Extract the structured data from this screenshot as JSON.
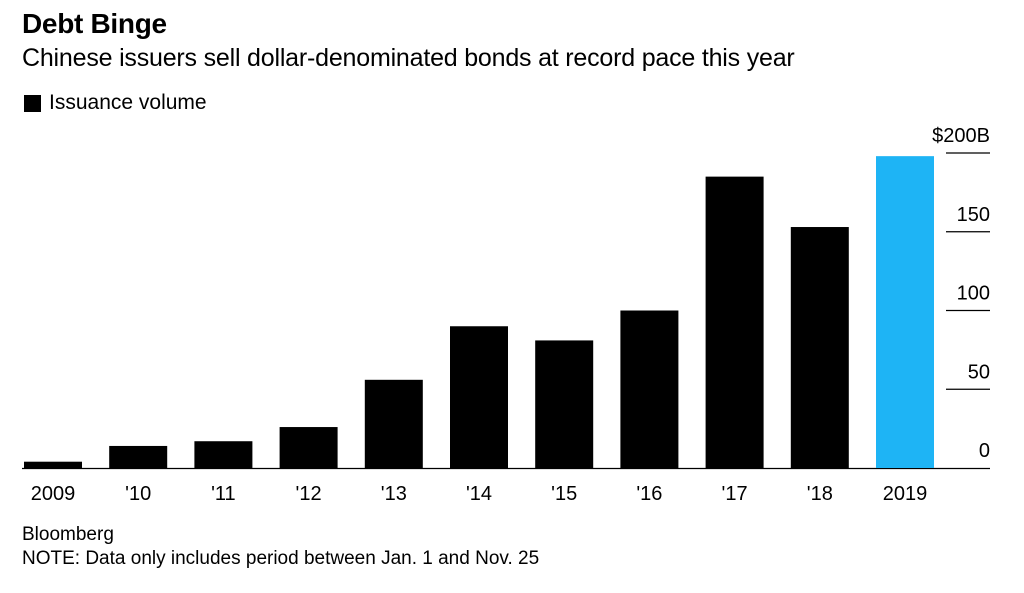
{
  "header": {
    "title": "Debt Binge",
    "subtitle": "Chinese issuers sell dollar-denominated bonds at record pace this year"
  },
  "legend": {
    "label": "Issuance volume",
    "color": "#000000"
  },
  "footer": {
    "source": "Bloomberg",
    "note": "NOTE: Data only includes period between Jan. 1 and Nov. 25"
  },
  "colors": {
    "bar": "#000000",
    "highlight": "#1eb4f5"
  },
  "chart_data": {
    "type": "bar",
    "title": "Debt Binge",
    "subtitle": "Chinese issuers sell dollar-denominated bonds at record pace this year",
    "categories": [
      "2009",
      "'10",
      "'11",
      "'12",
      "'13",
      "'14",
      "'15",
      "'16",
      "'17",
      "'18",
      "2019"
    ],
    "series": [
      {
        "name": "Issuance volume",
        "values": [
          4,
          14,
          17,
          26,
          56,
          90,
          81,
          100,
          185,
          153,
          198
        ]
      }
    ],
    "highlight_index": 10,
    "xlabel": "",
    "ylabel": "",
    "ylim": [
      0,
      200
    ],
    "y_ticks": [
      0,
      50,
      100,
      150,
      200
    ],
    "y_tick_labels": [
      "0",
      "50",
      "100",
      "150",
      "$200B"
    ],
    "y_axis_side": "right",
    "legend_position": "top-left"
  }
}
